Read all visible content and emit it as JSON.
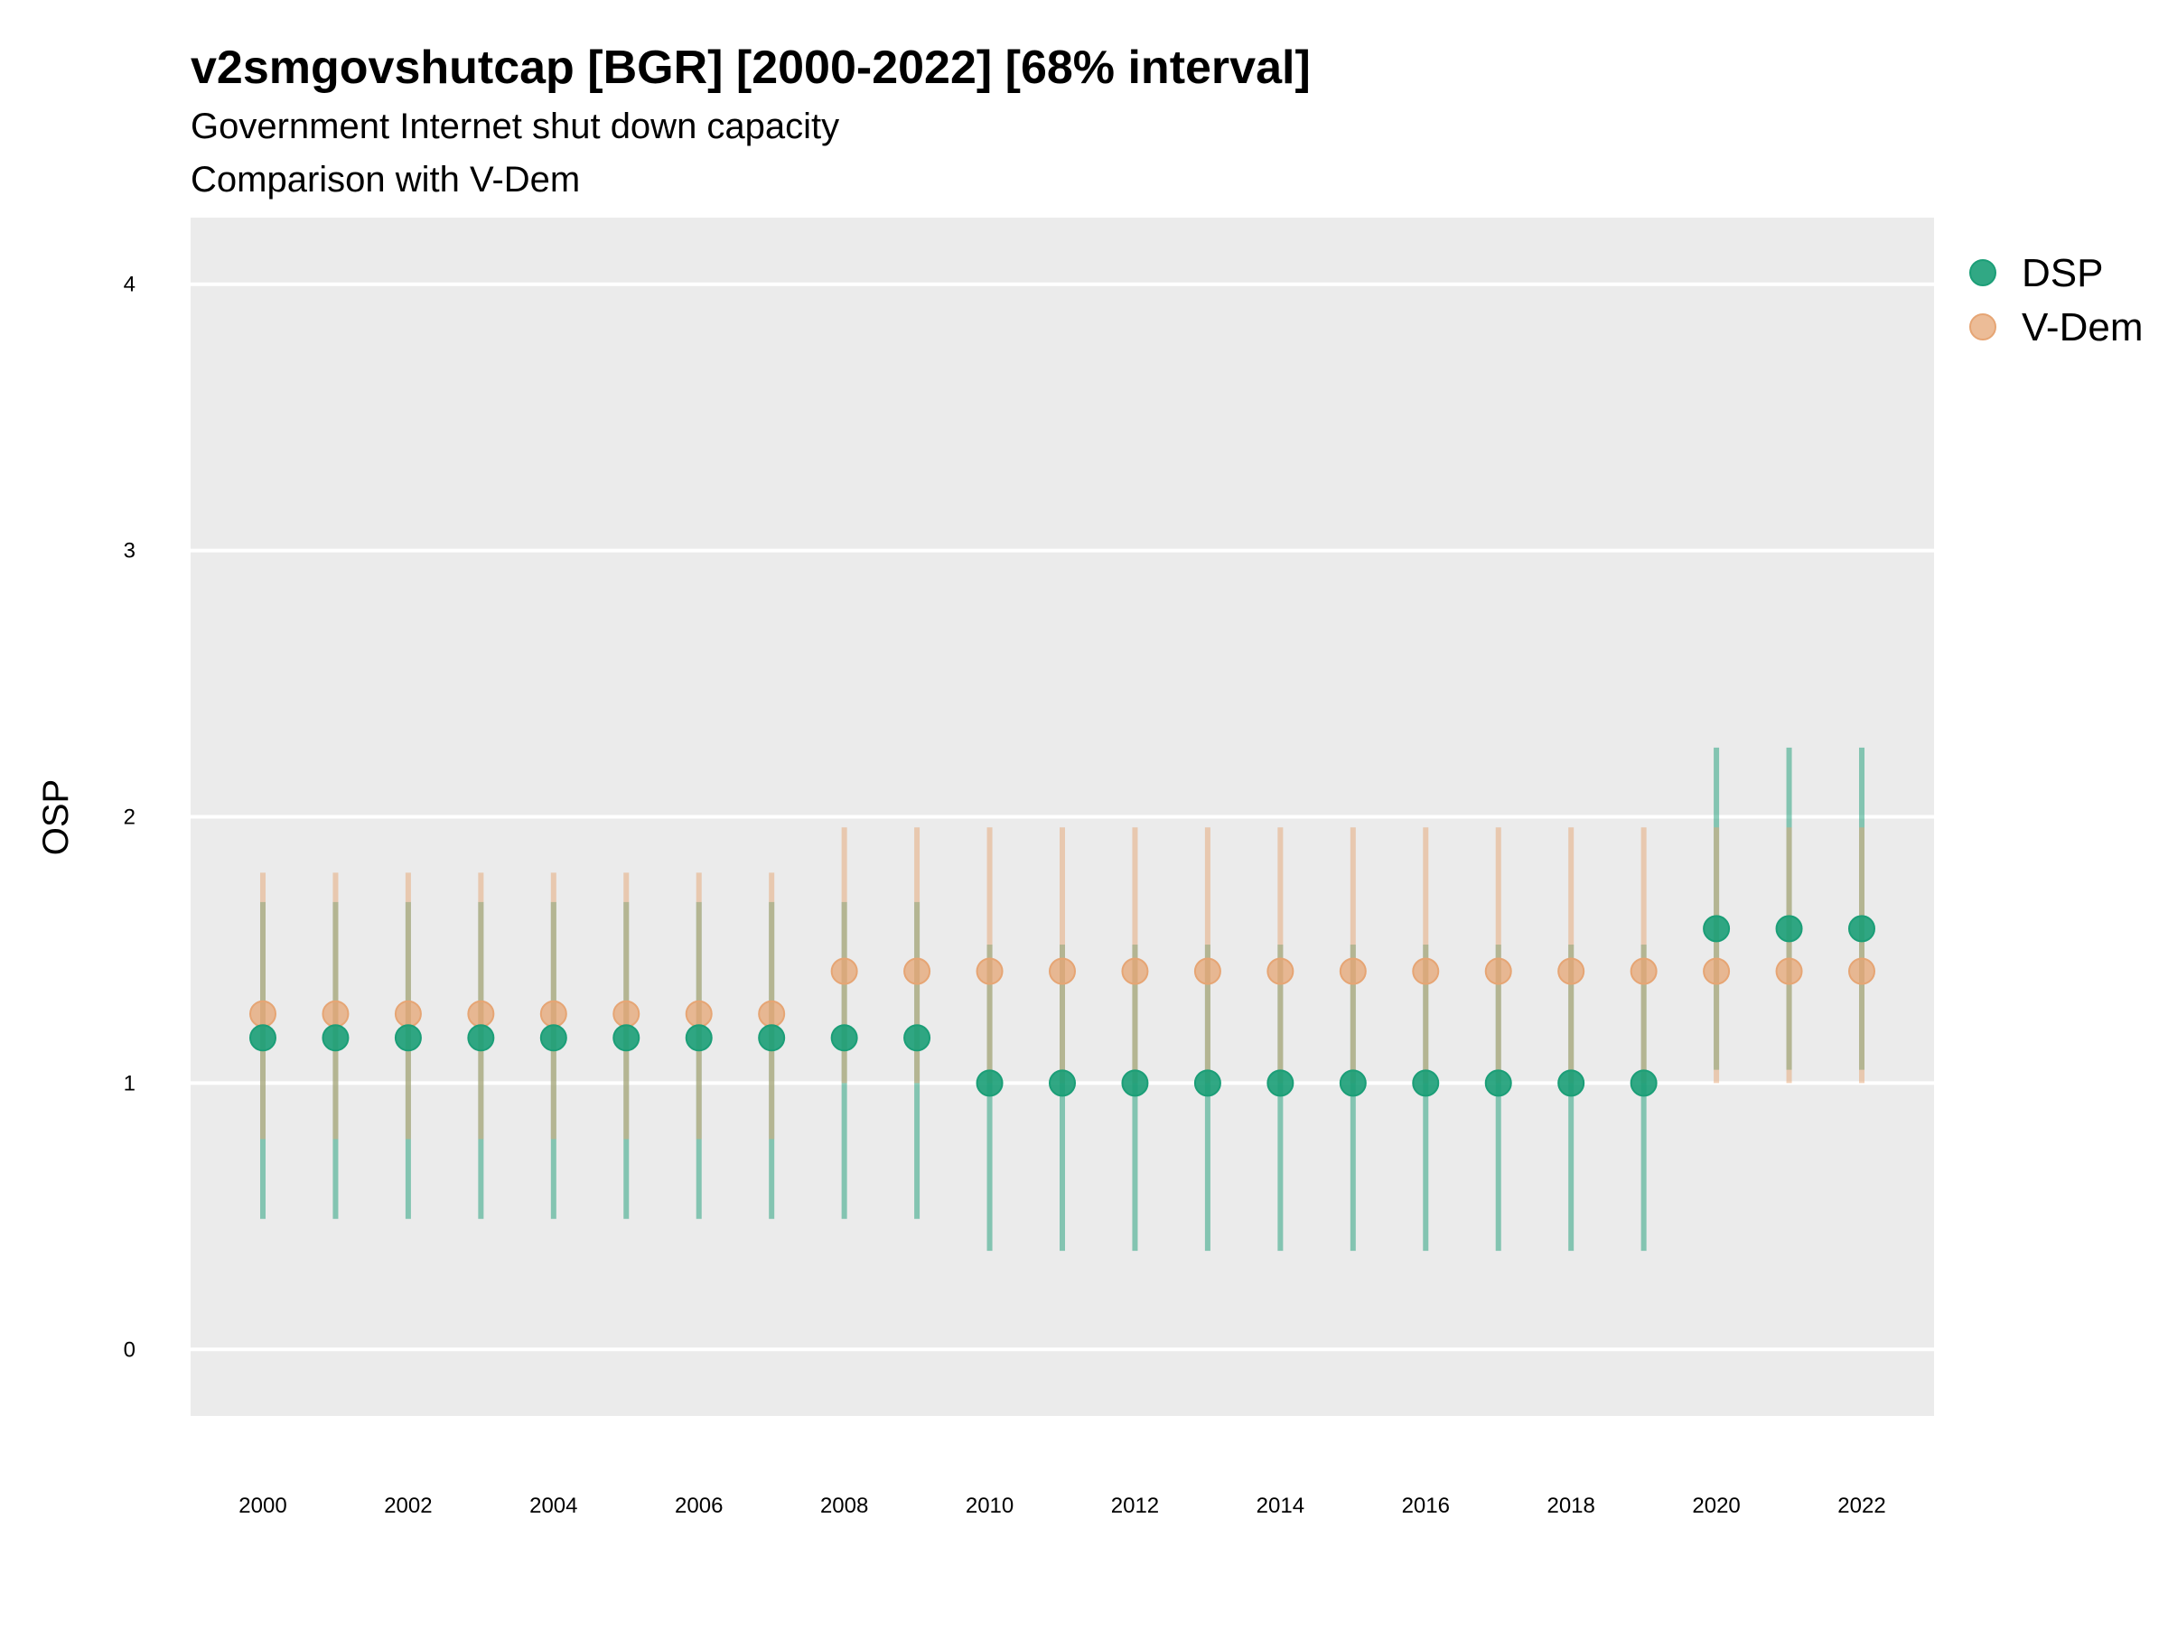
{
  "chart_data": {
    "type": "scatter",
    "title": "v2smgovshutcap [BGR] [2000-2022] [68% interval]",
    "subtitle_lines": [
      "Government Internet shut down capacity",
      "Comparison with V-Dem"
    ],
    "ylabel": "OSP",
    "xlabel": "",
    "x": [
      2000,
      2001,
      2002,
      2003,
      2004,
      2005,
      2006,
      2007,
      2008,
      2009,
      2010,
      2011,
      2012,
      2013,
      2014,
      2015,
      2016,
      2017,
      2018,
      2019,
      2020,
      2021,
      2022
    ],
    "x_tick_labels": [
      "2000",
      "2002",
      "2004",
      "2006",
      "2008",
      "2010",
      "2012",
      "2014",
      "2016",
      "2018",
      "2020",
      "2022"
    ],
    "y_tick_labels": [
      "0",
      "1",
      "2",
      "3",
      "4"
    ],
    "ylim": [
      -0.25,
      4.25
    ],
    "grid": true,
    "legend_position": "right",
    "series": [
      {
        "name": "DSP",
        "color": "#1b9e77",
        "values": [
          1.17,
          1.17,
          1.17,
          1.17,
          1.17,
          1.17,
          1.17,
          1.17,
          1.17,
          1.17,
          1.0,
          1.0,
          1.0,
          1.0,
          1.0,
          1.0,
          1.0,
          1.0,
          1.0,
          1.0,
          1.58,
          1.58,
          1.58
        ],
        "lower": [
          0.49,
          0.49,
          0.49,
          0.49,
          0.49,
          0.49,
          0.49,
          0.49,
          0.49,
          0.49,
          0.37,
          0.37,
          0.37,
          0.37,
          0.37,
          0.37,
          0.37,
          0.37,
          0.37,
          0.37,
          1.05,
          1.05,
          1.05
        ],
        "upper": [
          1.68,
          1.68,
          1.68,
          1.68,
          1.68,
          1.68,
          1.68,
          1.68,
          1.68,
          1.68,
          1.52,
          1.52,
          1.52,
          1.52,
          1.52,
          1.52,
          1.52,
          1.52,
          1.52,
          1.52,
          2.26,
          2.26,
          2.26
        ]
      },
      {
        "name": "V-Dem",
        "color": "#e6a574",
        "values": [
          1.26,
          1.26,
          1.26,
          1.26,
          1.26,
          1.26,
          1.26,
          1.26,
          1.42,
          1.42,
          1.42,
          1.42,
          1.42,
          1.42,
          1.42,
          1.42,
          1.42,
          1.42,
          1.42,
          1.42,
          1.42,
          1.42,
          1.42
        ],
        "lower": [
          0.79,
          0.79,
          0.79,
          0.79,
          0.79,
          0.79,
          0.79,
          0.79,
          1.0,
          1.0,
          1.0,
          1.0,
          1.0,
          1.0,
          1.0,
          1.0,
          1.0,
          1.0,
          1.0,
          1.0,
          1.0,
          1.0,
          1.0
        ],
        "upper": [
          1.79,
          1.79,
          1.79,
          1.79,
          1.79,
          1.79,
          1.79,
          1.79,
          1.96,
          1.96,
          1.96,
          1.96,
          1.96,
          1.96,
          1.96,
          1.96,
          1.96,
          1.96,
          1.96,
          1.96,
          1.96,
          1.96,
          1.96
        ]
      }
    ]
  }
}
